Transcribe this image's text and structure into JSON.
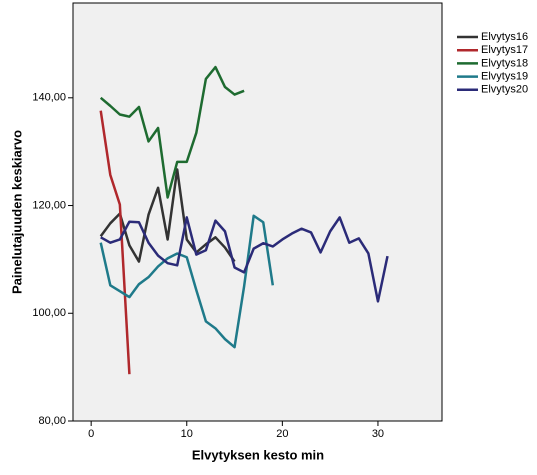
{
  "chart_data": {
    "type": "line",
    "x_label": "Elvytyksen kesto min",
    "y_label": "Painelutajuuden keskiarvo",
    "x": [
      1,
      2,
      3,
      4,
      5,
      6,
      7,
      8,
      9,
      10,
      11,
      12,
      13,
      14,
      15,
      16,
      17,
      18,
      19,
      20,
      21,
      22,
      23,
      24,
      25,
      26,
      27,
      28,
      29,
      30,
      31
    ],
    "series": [
      {
        "name": "Elvytys16",
        "color": "#333333",
        "values": [
          114.3,
          116.7,
          118.5,
          112.6,
          109.6,
          118.3,
          123.3,
          113.7,
          126.7,
          113.7,
          111.3,
          112.8,
          114.1,
          112.2,
          109.6,
          null,
          null,
          null,
          null,
          null,
          null,
          null,
          null,
          null,
          null,
          null,
          null,
          null,
          null,
          null,
          null
        ]
      },
      {
        "name": "Elvytys17",
        "color": "#b0282c",
        "values": [
          137.6,
          125.7,
          120.2,
          88.7,
          null,
          null,
          null,
          null,
          null,
          null,
          null,
          null,
          null,
          null,
          null,
          null,
          null,
          null,
          null,
          null,
          null,
          null,
          null,
          null,
          null,
          null,
          null,
          null,
          null,
          null,
          null
        ]
      },
      {
        "name": "Elvytys18",
        "color": "#1e6b30",
        "values": [
          140,
          138.5,
          136.9,
          136.5,
          138.3,
          131.9,
          134.4,
          121.5,
          128.1,
          128.1,
          133.5,
          143.5,
          145.7,
          142,
          140.6,
          141.3,
          null,
          null,
          null,
          null,
          null,
          null,
          null,
          null,
          null,
          null,
          null,
          null,
          null,
          null,
          null
        ]
      },
      {
        "name": "Elvytys19",
        "color": "#1f7a8a",
        "values": [
          113.1,
          105.2,
          104.1,
          103,
          105.4,
          106.7,
          108.7,
          110.2,
          111.1,
          110.4,
          104.3,
          98.5,
          97.2,
          95.2,
          93.7,
          105,
          118.1,
          116.9,
          105.2,
          null,
          null,
          null,
          null,
          null,
          null,
          null,
          null,
          null,
          null,
          null,
          null
        ]
      },
      {
        "name": "Elvytys20",
        "color": "#2b2b78",
        "values": [
          114.1,
          113.1,
          113.7,
          117,
          116.9,
          113.1,
          110.7,
          109.3,
          108.9,
          117.8,
          110.9,
          111.7,
          117.2,
          115.2,
          108.5,
          107.6,
          112,
          113,
          112.4,
          113.7,
          114.8,
          115.7,
          115,
          111.3,
          115.2,
          117.8,
          113.1,
          113.9,
          111.1,
          102.2,
          110.6
        ]
      }
    ],
    "xlim": [
      -1.9,
      36.7
    ],
    "xticks": [
      0,
      10,
      20,
      30
    ],
    "ylim": [
      80,
      157.6
    ],
    "yticks": [
      {
        "value": 80,
        "label": "80,00"
      },
      {
        "value": 100,
        "label": "100,00"
      },
      {
        "value": 120,
        "label": "120,00"
      },
      {
        "value": 140,
        "label": "140,00"
      }
    ],
    "grid": false,
    "legend": "right"
  }
}
